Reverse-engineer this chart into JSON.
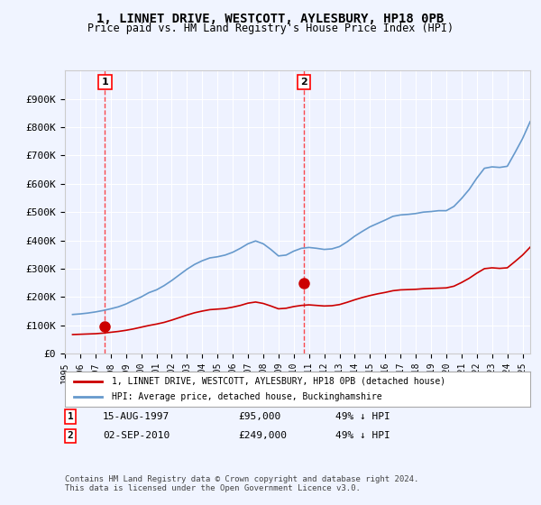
{
  "title": "1, LINNET DRIVE, WESTCOTT, AYLESBURY, HP18 0PB",
  "subtitle": "Price paid vs. HM Land Registry's House Price Index (HPI)",
  "ylabel_ticks": [
    "£0",
    "£100K",
    "£200K",
    "£300K",
    "£400K",
    "£500K",
    "£600K",
    "£700K",
    "£800K",
    "£900K"
  ],
  "ytick_values": [
    0,
    100000,
    200000,
    300000,
    400000,
    500000,
    600000,
    700000,
    800000,
    900000
  ],
  "ylim": [
    0,
    1000000
  ],
  "xlim_start": 1995.0,
  "xlim_end": 2025.5,
  "background_color": "#f0f4ff",
  "plot_bg_color": "#f0f4ff",
  "grid_color": "#ffffff",
  "sale1_date_str": "15-AUG-1997",
  "sale1_year": 1997.62,
  "sale1_price": 95000,
  "sale1_label": "49% ↓ HPI",
  "sale2_date_str": "02-SEP-2010",
  "sale2_year": 2010.67,
  "sale2_price": 249000,
  "sale2_label": "49% ↓ HPI",
  "legend_line1": "1, LINNET DRIVE, WESTCOTT, AYLESBURY, HP18 0PB (detached house)",
  "legend_line2": "HPI: Average price, detached house, Buckinghamshire",
  "red_line_color": "#cc0000",
  "blue_line_color": "#6699cc",
  "footer": "Contains HM Land Registry data © Crown copyright and database right 2024.\nThis data is licensed under the Open Government Licence v3.0.",
  "hpi_data": {
    "years": [
      1995.5,
      1996.0,
      1996.5,
      1997.0,
      1997.5,
      1998.0,
      1998.5,
      1999.0,
      1999.5,
      2000.0,
      2000.5,
      2001.0,
      2001.5,
      2002.0,
      2002.5,
      2003.0,
      2003.5,
      2004.0,
      2004.5,
      2005.0,
      2005.5,
      2006.0,
      2006.5,
      2007.0,
      2007.5,
      2008.0,
      2008.5,
      2009.0,
      2009.5,
      2010.0,
      2010.5,
      2011.0,
      2011.5,
      2012.0,
      2012.5,
      2013.0,
      2013.5,
      2014.0,
      2014.5,
      2015.0,
      2015.5,
      2016.0,
      2016.5,
      2017.0,
      2017.5,
      2018.0,
      2018.5,
      2019.0,
      2019.5,
      2020.0,
      2020.5,
      2021.0,
      2021.5,
      2022.0,
      2022.5,
      2023.0,
      2023.5,
      2024.0,
      2024.5
    ],
    "values": [
      138000,
      140000,
      143000,
      147000,
      152000,
      158000,
      165000,
      175000,
      188000,
      200000,
      215000,
      225000,
      240000,
      258000,
      278000,
      298000,
      315000,
      328000,
      338000,
      342000,
      348000,
      358000,
      372000,
      388000,
      398000,
      388000,
      368000,
      345000,
      348000,
      362000,
      372000,
      375000,
      372000,
      368000,
      370000,
      378000,
      395000,
      415000,
      432000,
      448000,
      460000,
      472000,
      485000,
      490000,
      492000,
      495000,
      500000,
      502000,
      505000,
      505000,
      520000,
      548000,
      580000,
      620000,
      655000,
      660000,
      658000,
      662000,
      710000
    ],
    "extended_years": [
      2024.5,
      2025.0,
      2025.5
    ],
    "extended_values": [
      710000,
      760000,
      820000
    ]
  },
  "red_data": {
    "years": [
      1995.5,
      1996.0,
      1996.5,
      1997.0,
      1997.5,
      1998.0,
      1998.5,
      1999.0,
      1999.5,
      2000.0,
      2000.5,
      2001.0,
      2001.5,
      2002.0,
      2002.5,
      2003.0,
      2003.5,
      2004.0,
      2004.5,
      2005.0,
      2005.5,
      2006.0,
      2006.5,
      2007.0,
      2007.5,
      2008.0,
      2008.5,
      2009.0,
      2009.5,
      2010.0,
      2010.5,
      2011.0,
      2011.5,
      2012.0,
      2012.5,
      2013.0,
      2013.5,
      2014.0,
      2014.5,
      2015.0,
      2015.5,
      2016.0,
      2016.5,
      2017.0,
      2017.5,
      2018.0,
      2018.5,
      2019.0,
      2019.5,
      2020.0,
      2020.5,
      2021.0,
      2021.5,
      2022.0,
      2022.5,
      2023.0,
      2023.5,
      2024.0,
      2024.5
    ],
    "values": [
      67000,
      68000,
      69000,
      70000,
      72000,
      75000,
      78000,
      82000,
      87000,
      93000,
      99000,
      104000,
      110000,
      118000,
      127000,
      136000,
      144000,
      150000,
      155000,
      157000,
      159000,
      164000,
      170000,
      178000,
      182000,
      177000,
      168000,
      158000,
      160000,
      166000,
      170000,
      172000,
      170000,
      168000,
      169000,
      173000,
      181000,
      190000,
      198000,
      205000,
      211000,
      216000,
      222000,
      225000,
      226000,
      227000,
      229000,
      230000,
      231000,
      232000,
      238000,
      251000,
      266000,
      284000,
      300000,
      303000,
      301000,
      303000,
      325000
    ],
    "extended_years": [
      2024.5,
      2025.0,
      2025.5
    ],
    "extended_values": [
      325000,
      348000,
      376000
    ]
  }
}
